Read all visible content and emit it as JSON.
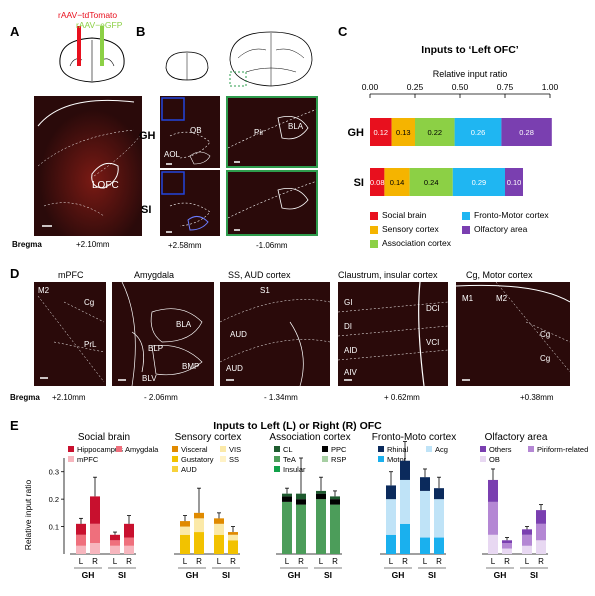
{
  "panels": {
    "A": "A",
    "B": "B",
    "C": "C",
    "D": "D",
    "E": "E"
  },
  "panelA": {
    "virus_red": "rAAV−tdTomato",
    "virus_green": "rAAV−eGFP",
    "region": "LOFC",
    "bregma_label": "Bregma",
    "bregma_value": "+2.10mm"
  },
  "panelB": {
    "row1": "GH",
    "row2": "SI",
    "ob": "OB",
    "aol": "AOL",
    "pir": "Pir",
    "bla": "BLA",
    "coord_left": "+2.58mm",
    "coord_right": "-1.06mm"
  },
  "panelC": {
    "title": "Inputs to ‘Left OFC’",
    "subtitle": "Relative input ratio",
    "ticks": [
      "0.00",
      "0.25",
      "0.50",
      "0.75",
      "1.00"
    ],
    "rows": [
      "GH",
      "SI"
    ],
    "legend": [
      {
        "label": "Social brain",
        "color": "#e8101e"
      },
      {
        "label": "Fronto-Motor cortex",
        "color": "#1fb6f2"
      },
      {
        "label": "Sensory cortex",
        "color": "#f5b400"
      },
      {
        "label": "Olfactory area",
        "color": "#7a3fb0"
      },
      {
        "label": "Association cortex",
        "color": "#8cd045"
      }
    ]
  },
  "chart_data": [
    {
      "type": "bar",
      "title": "Inputs to ‘Left OFC’",
      "xlabel": "Relative input ratio",
      "xlim": [
        0,
        1
      ],
      "orientation": "horizontal-stacked",
      "categories": [
        "GH",
        "SI"
      ],
      "series": [
        {
          "name": "Social brain",
          "color": "#e8101e",
          "values": [
            0.12,
            0.08
          ]
        },
        {
          "name": "Sensory cortex",
          "color": "#f5b400",
          "values": [
            0.13,
            0.14
          ]
        },
        {
          "name": "Association cortex",
          "color": "#8cd045",
          "values": [
            0.22,
            0.24
          ]
        },
        {
          "name": "Fronto-Motor cortex",
          "color": "#1fb6f2",
          "values": [
            0.26,
            0.29
          ]
        },
        {
          "name": "Olfactory area",
          "color": "#7a3fb0",
          "values": [
            0.28,
            0.1
          ]
        }
      ],
      "labels": [
        [
          "0.12",
          "0.13",
          "0.22",
          "0.26",
          "0.28"
        ],
        [
          "0.08",
          "0.14",
          "0.24",
          "0.29",
          "0.10"
        ]
      ]
    },
    {
      "type": "bar",
      "title": "Inputs to Left (L) or Right (R) OFC",
      "ylabel": "Relative input ratio",
      "ylim": [
        0,
        0.35
      ],
      "yticks": [
        "0.1",
        "0.2",
        "0.3"
      ],
      "groups": [
        {
          "title": "Social brain",
          "legend": [
            {
              "label": "Hippocampus",
              "color": "#c8102e"
            },
            {
              "label": "Amygdala",
              "color": "#ef6f7c"
            },
            {
              "label": "mPFC",
              "color": "#f7b6be"
            }
          ],
          "bars": [
            {
              "cat": "GH",
              "side": "L",
              "stack": [
                0.03,
                0.04,
                0.04
              ],
              "err": 0.02
            },
            {
              "cat": "GH",
              "side": "R",
              "stack": [
                0.04,
                0.07,
                0.1
              ],
              "err": 0.07
            },
            {
              "cat": "SI",
              "side": "L",
              "stack": [
                0.03,
                0.02,
                0.02
              ],
              "err": 0.01
            },
            {
              "cat": "SI",
              "side": "R",
              "stack": [
                0.03,
                0.03,
                0.05
              ],
              "err": 0.03
            }
          ]
        },
        {
          "title": "Sensory cortex",
          "legend": [
            {
              "label": "Visceral",
              "color": "#e08a00"
            },
            {
              "label": "VIS",
              "color": "#fbe9a8"
            },
            {
              "label": "Gustatory",
              "color": "#f2c200"
            },
            {
              "label": "SS",
              "color": "#fff2c6"
            },
            {
              "label": "AUD",
              "color": "#f7d23c"
            }
          ],
          "bars": [
            {
              "cat": "GH",
              "side": "L",
              "stack": [
                0.07,
                0.03,
                0.02
              ],
              "err": 0.02
            },
            {
              "cat": "GH",
              "side": "R",
              "stack": [
                0.08,
                0.05,
                0.02
              ],
              "err": 0.09
            },
            {
              "cat": "SI",
              "side": "L",
              "stack": [
                0.07,
                0.04,
                0.02
              ],
              "err": 0.02
            },
            {
              "cat": "SI",
              "side": "R",
              "stack": [
                0.05,
                0.02,
                0.01
              ],
              "err": 0.02
            }
          ]
        },
        {
          "title": "Association cortex",
          "legend": [
            {
              "label": "CL",
              "color": "#1e5b2f"
            },
            {
              "label": "PPC",
              "color": "#000000"
            },
            {
              "label": "TeA",
              "color": "#4c9d5a"
            },
            {
              "label": "RSP",
              "color": "#a7cfa3"
            },
            {
              "label": "Insular",
              "color": "#12a14a"
            }
          ],
          "bars": [
            {
              "cat": "GH",
              "side": "L",
              "stack": [
                0.19,
                0.02,
                0.01
              ],
              "err": 0.02
            },
            {
              "cat": "GH",
              "side": "R",
              "stack": [
                0.18,
                0.02,
                0.02
              ],
              "err": 0.13
            },
            {
              "cat": "SI",
              "side": "L",
              "stack": [
                0.2,
                0.02,
                0.01
              ],
              "err": 0.05
            },
            {
              "cat": "SI",
              "side": "R",
              "stack": [
                0.18,
                0.02,
                0.01
              ],
              "err": 0.02
            }
          ]
        },
        {
          "title": "Fronto-Moto cortex",
          "legend": [
            {
              "label": "Rhinal",
              "color": "#0b2a5c"
            },
            {
              "label": "Acg",
              "color": "#bfe3f7"
            },
            {
              "label": "Motor",
              "color": "#1ab0ee"
            }
          ],
          "bars": [
            {
              "cat": "GH",
              "side": "L",
              "stack": [
                0.07,
                0.13,
                0.05
              ],
              "err": 0.05
            },
            {
              "cat": "GH",
              "side": "R",
              "stack": [
                0.11,
                0.16,
                0.07
              ],
              "err": 0.07
            },
            {
              "cat": "SI",
              "side": "L",
              "stack": [
                0.06,
                0.17,
                0.05
              ],
              "err": 0.03
            },
            {
              "cat": "SI",
              "side": "R",
              "stack": [
                0.06,
                0.14,
                0.04
              ],
              "err": 0.04
            }
          ]
        },
        {
          "title": "Olfactory area",
          "legend": [
            {
              "label": "Others",
              "color": "#7a3fb0"
            },
            {
              "label": "Piriform-related",
              "color": "#b487d4"
            },
            {
              "label": "OB",
              "color": "#e8d8f2"
            }
          ],
          "bars": [
            {
              "cat": "GH",
              "side": "L",
              "stack": [
                0.07,
                0.12,
                0.08
              ],
              "err": 0.04
            },
            {
              "cat": "GH",
              "side": "R",
              "stack": [
                0.02,
                0.02,
                0.01
              ],
              "err": 0.01
            },
            {
              "cat": "SI",
              "side": "L",
              "stack": [
                0.03,
                0.04,
                0.02
              ],
              "err": 0.01
            },
            {
              "cat": "SI",
              "side": "R",
              "stack": [
                0.05,
                0.06,
                0.05
              ],
              "err": 0.02
            }
          ]
        }
      ]
    }
  ],
  "panelD": {
    "titles": [
      "mPFC",
      "Amygdala",
      "SS, AUD cortex",
      "Claustrum, insular cortex",
      "Cg, Motor cortex"
    ],
    "coords": [
      "+2.10mm",
      "- 2.06mm",
      "- 1.34mm",
      "+ 0.62mm",
      "+0.38mm"
    ],
    "bregma_label": "Bregma",
    "labels": {
      "mpfc": [
        "M2",
        "Cg",
        "PrL"
      ],
      "amyg": [
        "BLA",
        "BLP",
        "BMP",
        "BLV"
      ],
      "ss": [
        "S1",
        "AUD",
        "AUD"
      ],
      "cla": [
        "GI",
        "DI",
        "AID",
        "AIV",
        "DCI",
        "VCI"
      ],
      "cg": [
        "M1",
        "M2",
        "Cg",
        "Cg"
      ]
    }
  },
  "panelE": {
    "title": "Inputs to Left (L) or Right (R) OFC",
    "ylabel": "Relative input ratio",
    "side_L": "L",
    "side_R": "R",
    "cat_GH": "GH",
    "cat_SI": "SI"
  }
}
